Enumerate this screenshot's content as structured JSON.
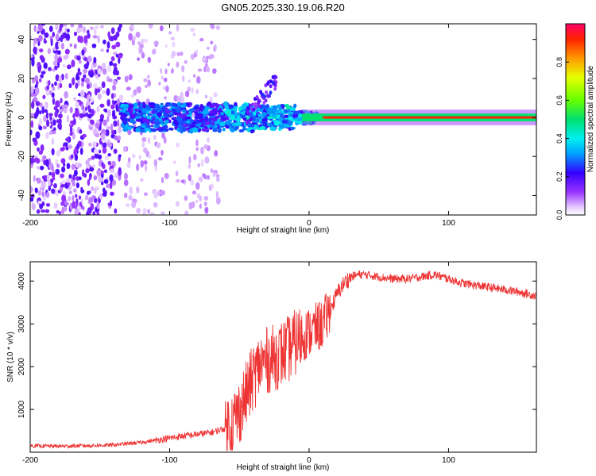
{
  "figure_title": "GN05.2025.330.19.06.R20",
  "chart_data": [
    {
      "type": "heatmap",
      "title": "GN05.2025.330.19.06.R20",
      "xlabel": "Height of straight line (km)",
      "ylabel": "Frequency (Hz)",
      "xlim": [
        -200,
        163
      ],
      "ylim": [
        -50,
        48
      ],
      "xticks": [
        -200,
        -100,
        0,
        100
      ],
      "yticks": [
        -40,
        -20,
        0,
        20,
        40
      ],
      "colorbar": {
        "label": "Normalized spectral amplitude",
        "range": [
          0,
          1
        ],
        "ticks": [
          0.0,
          0.2,
          0.4,
          0.6,
          0.8
        ]
      },
      "features": [
        {
          "name": "broadband noise",
          "x_range": [
            -200,
            -70
          ],
          "freq_range": [
            -50,
            48
          ],
          "amplitude": "low (0.05-0.2)"
        },
        {
          "name": "spread band",
          "x_range": [
            -135,
            -10
          ],
          "freq_range": [
            -8,
            8
          ],
          "amplitude": "0.15-0.45"
        },
        {
          "name": "carrier line",
          "x_range": [
            0,
            163
          ],
          "freq": 0,
          "amplitude": "0.9-1.0"
        }
      ]
    },
    {
      "type": "line",
      "title": "",
      "xlabel": "Height of straight line (km)",
      "ylabel": "SNR (10 * v/v)",
      "xlim": [
        -200,
        163
      ],
      "ylim": [
        0,
        4450
      ],
      "xticks": [
        -200,
        -100,
        0,
        100
      ],
      "yticks": [
        1000,
        2000,
        3000,
        4000
      ],
      "series": [
        {
          "name": "SNR",
          "color": "#ee3333",
          "x": [
            -200,
            -180,
            -160,
            -140,
            -120,
            -110,
            -100,
            -90,
            -80,
            -70,
            -60,
            -55,
            -50,
            -45,
            -40,
            -35,
            -30,
            -25,
            -20,
            -15,
            -10,
            -5,
            0,
            5,
            10,
            15,
            20,
            25,
            30,
            35,
            40,
            50,
            60,
            70,
            80,
            90,
            100,
            110,
            120,
            130,
            140,
            150,
            163
          ],
          "values": [
            150,
            140,
            150,
            170,
            230,
            280,
            330,
            380,
            420,
            460,
            560,
            700,
            950,
            1350,
            1750,
            2050,
            2150,
            2200,
            2300,
            2400,
            2550,
            2700,
            2800,
            2900,
            3000,
            3300,
            3700,
            3950,
            4100,
            4150,
            4150,
            4100,
            4050,
            4050,
            4100,
            4150,
            4050,
            3950,
            3900,
            3850,
            3800,
            3750,
            3650
          ]
        }
      ]
    }
  ]
}
